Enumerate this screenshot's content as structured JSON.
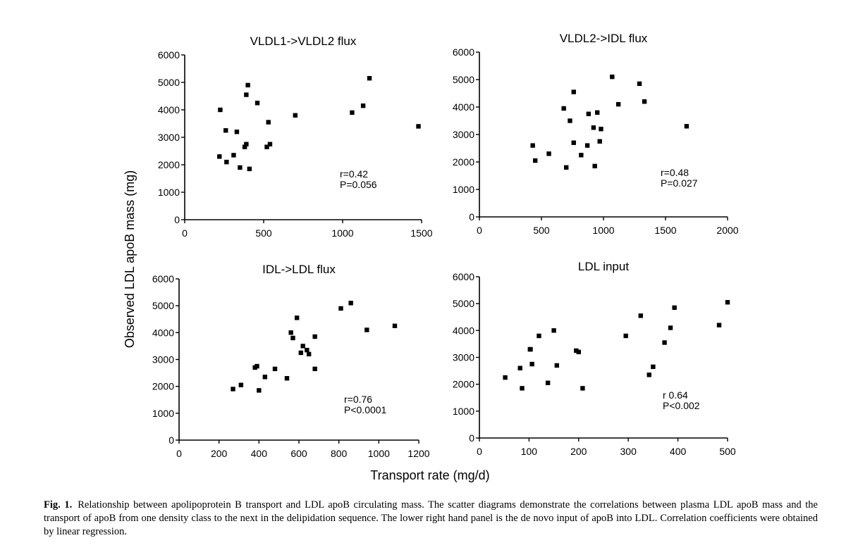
{
  "figure": {
    "ylabel": "Observed LDL apoB mass (mg)",
    "xlabel": "Transport rate (mg/d)",
    "caption_label": "Fig. 1.",
    "caption_text": "Relationship between apolipoprotein B transport and LDL apoB circulating mass. The scatter diagrams demonstrate the correlations between plasma LDL apoB mass and the transport of apoB from one density class to the next in the delipidation sequence. The lower right hand panel is the de novo input of apoB into LDL. Correlation coefficients were obtained by linear regression."
  },
  "chart_data": [
    {
      "type": "scatter",
      "title": "VLDL1->VLDL2 flux",
      "xlim": [
        0,
        1500
      ],
      "ylim": [
        0,
        6000
      ],
      "xticks": [
        0,
        500,
        1000,
        1500
      ],
      "yticks": [
        0,
        1000,
        2000,
        3000,
        4000,
        5000,
        6000
      ],
      "stat_r": "r=0.42",
      "stat_p": "P=0.056",
      "points": [
        [
          225,
          4000
        ],
        [
          260,
          3250
        ],
        [
          220,
          2300
        ],
        [
          265,
          2100
        ],
        [
          310,
          2350
        ],
        [
          330,
          3200
        ],
        [
          350,
          1900
        ],
        [
          380,
          2650
        ],
        [
          390,
          2750
        ],
        [
          390,
          4550
        ],
        [
          400,
          4900
        ],
        [
          410,
          1850
        ],
        [
          460,
          4250
        ],
        [
          520,
          2650
        ],
        [
          530,
          3550
        ],
        [
          540,
          2750
        ],
        [
          700,
          3800
        ],
        [
          1060,
          3900
        ],
        [
          1130,
          4150
        ],
        [
          1170,
          5150
        ],
        [
          1480,
          3400
        ]
      ]
    },
    {
      "type": "scatter",
      "title": "VLDL2->IDL flux",
      "xlim": [
        0,
        2000
      ],
      "ylim": [
        0,
        6000
      ],
      "xticks": [
        0,
        500,
        1000,
        1500,
        2000
      ],
      "yticks": [
        0,
        1000,
        2000,
        3000,
        4000,
        5000,
        6000
      ],
      "stat_r": "r=0.48",
      "stat_p": "P=0.027",
      "points": [
        [
          430,
          2600
        ],
        [
          450,
          2050
        ],
        [
          560,
          2300
        ],
        [
          680,
          3950
        ],
        [
          700,
          1800
        ],
        [
          730,
          3500
        ],
        [
          760,
          2700
        ],
        [
          760,
          4550
        ],
        [
          820,
          2250
        ],
        [
          870,
          2600
        ],
        [
          880,
          3750
        ],
        [
          920,
          3250
        ],
        [
          930,
          1850
        ],
        [
          950,
          3800
        ],
        [
          970,
          2750
        ],
        [
          980,
          3200
        ],
        [
          1070,
          5100
        ],
        [
          1120,
          4100
        ],
        [
          1290,
          4850
        ],
        [
          1330,
          4200
        ],
        [
          1670,
          3300
        ]
      ]
    },
    {
      "type": "scatter",
      "title": "IDL->LDL flux",
      "xlim": [
        0,
        1200
      ],
      "ylim": [
        0,
        6000
      ],
      "xticks": [
        0,
        200,
        400,
        600,
        800,
        1000,
        1200
      ],
      "yticks": [
        0,
        1000,
        2000,
        3000,
        4000,
        5000,
        6000
      ],
      "stat_r": "r=0.76",
      "stat_p": "P<0.0001",
      "points": [
        [
          270,
          1900
        ],
        [
          310,
          2050
        ],
        [
          380,
          2700
        ],
        [
          390,
          2750
        ],
        [
          400,
          1850
        ],
        [
          430,
          2350
        ],
        [
          480,
          2650
        ],
        [
          540,
          2300
        ],
        [
          560,
          4000
        ],
        [
          570,
          3800
        ],
        [
          590,
          4550
        ],
        [
          610,
          3250
        ],
        [
          620,
          3500
        ],
        [
          640,
          3350
        ],
        [
          650,
          3200
        ],
        [
          680,
          2650
        ],
        [
          680,
          3850
        ],
        [
          810,
          4900
        ],
        [
          860,
          5100
        ],
        [
          940,
          4100
        ],
        [
          1080,
          4250
        ]
      ]
    },
    {
      "type": "scatter",
      "title": "LDL input",
      "xlim": [
        0,
        500
      ],
      "ylim": [
        0,
        6000
      ],
      "xticks": [
        0,
        100,
        200,
        300,
        400,
        500
      ],
      "yticks": [
        0,
        1000,
        2000,
        3000,
        4000,
        5000,
        6000
      ],
      "stat_r": "r 0.64",
      "stat_p": "P<0.002",
      "points": [
        [
          52,
          2250
        ],
        [
          82,
          2600
        ],
        [
          86,
          1850
        ],
        [
          102,
          3300
        ],
        [
          103,
          3300
        ],
        [
          106,
          2750
        ],
        [
          120,
          3800
        ],
        [
          138,
          2050
        ],
        [
          150,
          4000
        ],
        [
          156,
          2700
        ],
        [
          195,
          3250
        ],
        [
          200,
          3200
        ],
        [
          208,
          1850
        ],
        [
          295,
          3800
        ],
        [
          325,
          4550
        ],
        [
          342,
          2350
        ],
        [
          350,
          2650
        ],
        [
          373,
          3550
        ],
        [
          385,
          4100
        ],
        [
          393,
          4850
        ],
        [
          483,
          4200
        ],
        [
          500,
          5050
        ]
      ]
    }
  ]
}
